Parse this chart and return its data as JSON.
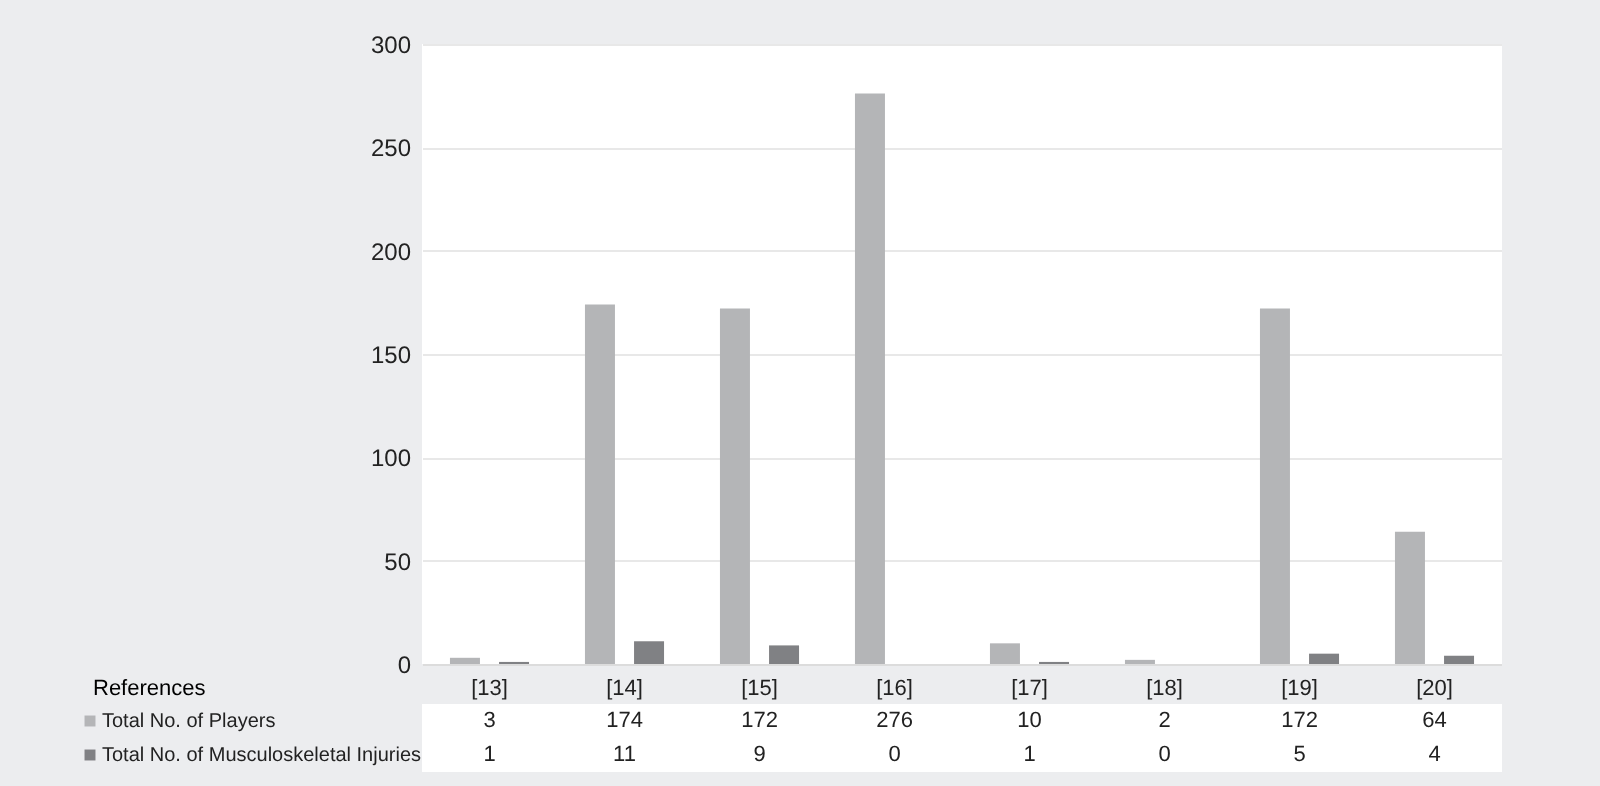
{
  "chart_data": {
    "type": "bar",
    "annotations": [
      "References"
    ],
    "categories": [
      "[13]",
      "[14]",
      "[15]",
      "[16]",
      "[17]",
      "[18]",
      "[19]",
      "[20]"
    ],
    "series": [
      {
        "name": "Total No. of Players",
        "color": "#b4b5b7",
        "values": [
          3,
          174,
          172,
          276,
          10,
          2,
          172,
          64
        ]
      },
      {
        "name": "Total No. of Musculoskeletal Injuries",
        "color": "#808184",
        "values": [
          1,
          11,
          9,
          0,
          1,
          0,
          5,
          4
        ]
      }
    ],
    "ylim": [
      0,
      300
    ],
    "yticks": [
      0,
      50,
      100,
      150,
      200,
      250,
      300
    ],
    "grid": "y",
    "legend": "bottom",
    "data_labels": true
  }
}
